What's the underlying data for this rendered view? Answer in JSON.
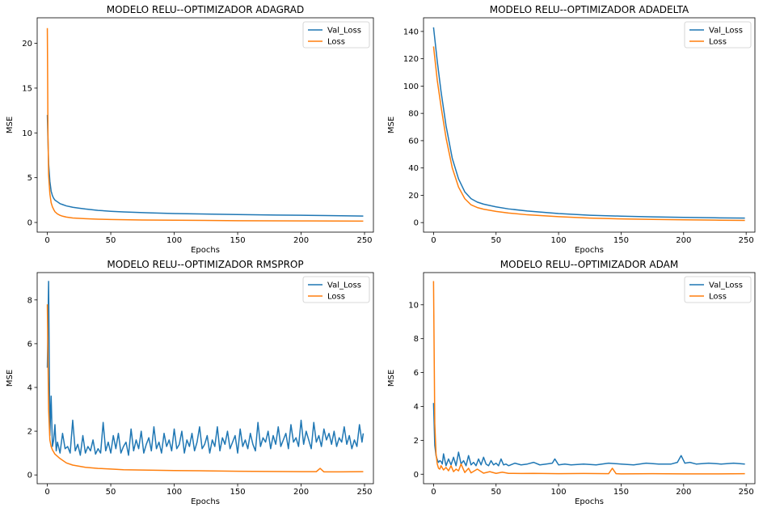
{
  "chart_data": [
    {
      "type": "line",
      "title": "MODELO RELU--OPTIMIZADOR ADAGRAD",
      "xlabel": "Epochs",
      "ylabel": "MSE",
      "xlim": [
        -8,
        257
      ],
      "ylim": [
        -1.08,
        22.85
      ],
      "xticks": [
        0,
        50,
        100,
        150,
        200,
        250
      ],
      "yticks": [
        0,
        5,
        10,
        15,
        20
      ],
      "legend": "top-right",
      "grid": false,
      "series": [
        {
          "name": "Val_Loss",
          "color": "#1f77b4",
          "x": [
            0,
            0.5,
            1,
            2,
            3,
            4,
            5,
            6,
            8,
            10,
            12,
            15,
            20,
            25,
            30,
            40,
            50,
            60,
            80,
            100,
            120,
            150,
            180,
            200,
            220,
            249
          ],
          "y": [
            12.0,
            9.2,
            6.6,
            4.6,
            3.5,
            3.0,
            2.7,
            2.5,
            2.3,
            2.1,
            2.0,
            1.85,
            1.7,
            1.6,
            1.5,
            1.35,
            1.25,
            1.18,
            1.08,
            1.0,
            0.95,
            0.88,
            0.83,
            0.8,
            0.77,
            0.72
          ]
        },
        {
          "name": "Loss",
          "color": "#ff7f0e",
          "x": [
            0,
            0.5,
            1,
            2,
            3,
            4,
            5,
            6,
            8,
            10,
            12,
            15,
            20,
            30,
            40,
            50,
            75,
            100,
            150,
            200,
            249
          ],
          "y": [
            21.7,
            10.0,
            5.3,
            3.2,
            2.2,
            1.75,
            1.45,
            1.2,
            0.95,
            0.8,
            0.7,
            0.6,
            0.5,
            0.42,
            0.37,
            0.33,
            0.28,
            0.25,
            0.2,
            0.17,
            0.15
          ]
        }
      ]
    },
    {
      "type": "line",
      "title": "MODELO RELU--OPTIMIZADOR ADADELTA",
      "xlabel": "Epochs",
      "ylabel": "MSE",
      "xlim": [
        -8,
        257
      ],
      "ylim": [
        -7,
        150
      ],
      "xticks": [
        0,
        50,
        100,
        150,
        200,
        250
      ],
      "yticks": [
        0,
        20,
        40,
        60,
        80,
        100,
        120,
        140
      ],
      "legend": "top-right",
      "grid": false,
      "series": [
        {
          "name": "Val_Loss",
          "color": "#1f77b4",
          "x": [
            0,
            3,
            6,
            10,
            15,
            20,
            25,
            30,
            35,
            40,
            50,
            60,
            75,
            100,
            125,
            150,
            175,
            200,
            225,
            249
          ],
          "y": [
            143,
            118,
            96,
            71,
            47,
            32,
            22.5,
            17.5,
            15,
            13.5,
            11.5,
            10,
            8.5,
            6.6,
            5.4,
            4.7,
            4.2,
            3.8,
            3.5,
            3.3
          ]
        },
        {
          "name": "Loss",
          "color": "#ff7f0e",
          "x": [
            0,
            3,
            6,
            10,
            15,
            20,
            25,
            30,
            35,
            40,
            50,
            60,
            75,
            100,
            125,
            150,
            175,
            200,
            225,
            249
          ],
          "y": [
            129,
            104,
            85,
            62,
            40,
            26,
            17.5,
            13,
            11,
            9.8,
            8.2,
            7,
            5.7,
            4.3,
            3.3,
            2.7,
            2.3,
            2.0,
            1.8,
            1.6
          ]
        }
      ]
    },
    {
      "type": "line",
      "title": "MODELO RELU--OPTIMIZADOR RMSPROP",
      "xlabel": "Epochs",
      "ylabel": "MSE",
      "xlim": [
        -8,
        257
      ],
      "ylim": [
        -0.4,
        9.25
      ],
      "xticks": [
        0,
        50,
        100,
        150,
        200,
        250
      ],
      "yticks": [
        0,
        2,
        4,
        6,
        8
      ],
      "legend": "top-right",
      "grid": false,
      "series": [
        {
          "name": "Val_Loss",
          "color": "#1f77b4",
          "x": [
            0,
            1,
            2,
            3,
            4,
            5,
            6,
            7,
            8,
            10,
            12,
            14,
            16,
            18,
            20,
            22,
            24,
            26,
            28,
            30,
            32,
            34,
            36,
            38,
            40,
            42,
            44,
            46,
            48,
            50,
            52,
            54,
            56,
            58,
            60,
            62,
            64,
            66,
            68,
            70,
            72,
            74,
            76,
            78,
            80,
            82,
            84,
            86,
            88,
            90,
            92,
            94,
            96,
            98,
            100,
            102,
            104,
            106,
            108,
            110,
            112,
            114,
            116,
            118,
            120,
            122,
            124,
            126,
            128,
            130,
            132,
            134,
            136,
            138,
            140,
            142,
            144,
            146,
            148,
            150,
            152,
            154,
            156,
            158,
            160,
            162,
            164,
            166,
            168,
            170,
            172,
            174,
            176,
            178,
            180,
            182,
            184,
            186,
            188,
            190,
            192,
            194,
            196,
            198,
            200,
            202,
            204,
            206,
            208,
            210,
            212,
            214,
            216,
            218,
            220,
            222,
            224,
            226,
            228,
            230,
            232,
            234,
            236,
            238,
            240,
            242,
            244,
            246,
            248,
            249
          ],
          "y": [
            4.9,
            8.85,
            1.8,
            3.6,
            1.3,
            1.6,
            2.3,
            1.1,
            1.5,
            1.0,
            1.9,
            1.2,
            1.3,
            1.0,
            2.5,
            1.1,
            1.4,
            0.9,
            1.8,
            1.0,
            1.3,
            1.1,
            1.6,
            0.95,
            1.2,
            1.0,
            2.4,
            1.1,
            1.5,
            1.0,
            1.8,
            1.2,
            1.9,
            1.0,
            1.3,
            1.5,
            0.9,
            2.1,
            1.1,
            1.6,
            1.2,
            2.0,
            1.0,
            1.4,
            1.7,
            1.1,
            2.2,
            1.2,
            1.5,
            1.0,
            1.9,
            1.3,
            1.6,
            1.1,
            2.1,
            1.2,
            1.4,
            2.0,
            1.0,
            1.6,
            1.3,
            1.9,
            1.1,
            1.5,
            2.2,
            1.2,
            1.4,
            1.8,
            1.0,
            1.6,
            1.3,
            2.2,
            1.1,
            1.7,
            1.4,
            2.0,
            1.2,
            1.5,
            1.8,
            1.0,
            2.1,
            1.3,
            1.6,
            1.2,
            1.9,
            1.4,
            1.1,
            2.4,
            1.3,
            1.7,
            1.5,
            2.0,
            1.2,
            1.8,
            1.4,
            2.2,
            1.3,
            1.6,
            1.9,
            1.2,
            2.3,
            1.5,
            1.7,
            1.3,
            2.5,
            1.4,
            2.0,
            1.6,
            1.2,
            2.4,
            1.5,
            1.8,
            1.3,
            2.1,
            1.6,
            1.9,
            1.4,
            2.0,
            1.3,
            1.7,
            1.5,
            2.2,
            1.4,
            1.8,
            1.2,
            1.6,
            1.3,
            2.3,
            1.5,
            1.9
          ]
        },
        {
          "name": "Loss",
          "color": "#ff7f0e",
          "x": [
            0,
            1,
            2,
            3,
            4,
            6,
            8,
            10,
            15,
            20,
            25,
            30,
            40,
            50,
            60,
            80,
            100,
            120,
            150,
            175,
            200,
            212,
            215,
            218,
            230,
            249
          ],
          "y": [
            7.8,
            3.0,
            1.6,
            1.3,
            1.15,
            0.95,
            0.85,
            0.75,
            0.55,
            0.45,
            0.4,
            0.35,
            0.3,
            0.27,
            0.24,
            0.22,
            0.2,
            0.19,
            0.17,
            0.16,
            0.15,
            0.15,
            0.3,
            0.14,
            0.14,
            0.15
          ]
        }
      ]
    },
    {
      "type": "line",
      "title": "MODELO RELU--OPTIMIZADOR ADAM",
      "xlabel": "Epochs",
      "ylabel": "MSE",
      "xlim": [
        -8,
        257
      ],
      "ylim": [
        -0.56,
        11.9
      ],
      "xticks": [
        0,
        50,
        100,
        150,
        200,
        250
      ],
      "yticks": [
        0,
        2,
        4,
        6,
        8,
        10
      ],
      "legend": "top-right",
      "grid": false,
      "series": [
        {
          "name": "Val_Loss",
          "color": "#1f77b4",
          "x": [
            0,
            1,
            2,
            3,
            4,
            5,
            6,
            7,
            8,
            10,
            12,
            14,
            16,
            18,
            20,
            22,
            24,
            26,
            28,
            30,
            32,
            34,
            36,
            38,
            40,
            42,
            44,
            46,
            48,
            50,
            52,
            54,
            56,
            58,
            60,
            65,
            70,
            75,
            80,
            85,
            90,
            95,
            97,
            100,
            105,
            110,
            120,
            130,
            140,
            150,
            160,
            170,
            180,
            190,
            195,
            198,
            201,
            205,
            210,
            220,
            230,
            240,
            249
          ],
          "y": [
            4.2,
            1.7,
            1.1,
            0.85,
            0.7,
            0.8,
            0.75,
            0.6,
            1.2,
            0.5,
            0.9,
            0.55,
            1.0,
            0.5,
            1.3,
            0.6,
            0.8,
            0.5,
            1.1,
            0.55,
            0.7,
            0.5,
            0.9,
            0.55,
            1.0,
            0.6,
            0.5,
            0.8,
            0.55,
            0.65,
            0.5,
            0.9,
            0.55,
            0.6,
            0.5,
            0.65,
            0.55,
            0.6,
            0.7,
            0.55,
            0.6,
            0.65,
            0.9,
            0.55,
            0.6,
            0.55,
            0.6,
            0.55,
            0.65,
            0.6,
            0.55,
            0.65,
            0.6,
            0.6,
            0.7,
            1.1,
            0.65,
            0.7,
            0.6,
            0.65,
            0.6,
            0.65,
            0.6
          ]
        },
        {
          "name": "Loss",
          "color": "#ff7f0e",
          "x": [
            0,
            1,
            2,
            3,
            4,
            5,
            6,
            8,
            10,
            12,
            14,
            16,
            18,
            20,
            22,
            25,
            28,
            30,
            35,
            40,
            45,
            50,
            55,
            60,
            70,
            80,
            100,
            120,
            140,
            143,
            146,
            150,
            175,
            200,
            225,
            249
          ],
          "y": [
            11.4,
            3.0,
            1.2,
            0.6,
            0.35,
            0.3,
            0.5,
            0.25,
            0.4,
            0.2,
            0.5,
            0.15,
            0.3,
            0.2,
            0.6,
            0.1,
            0.35,
            0.08,
            0.3,
            0.06,
            0.15,
            0.05,
            0.12,
            0.05,
            0.04,
            0.05,
            0.03,
            0.04,
            0.03,
            0.35,
            0.03,
            0.02,
            0.03,
            0.02,
            0.02,
            0.03
          ]
        }
      ]
    }
  ]
}
